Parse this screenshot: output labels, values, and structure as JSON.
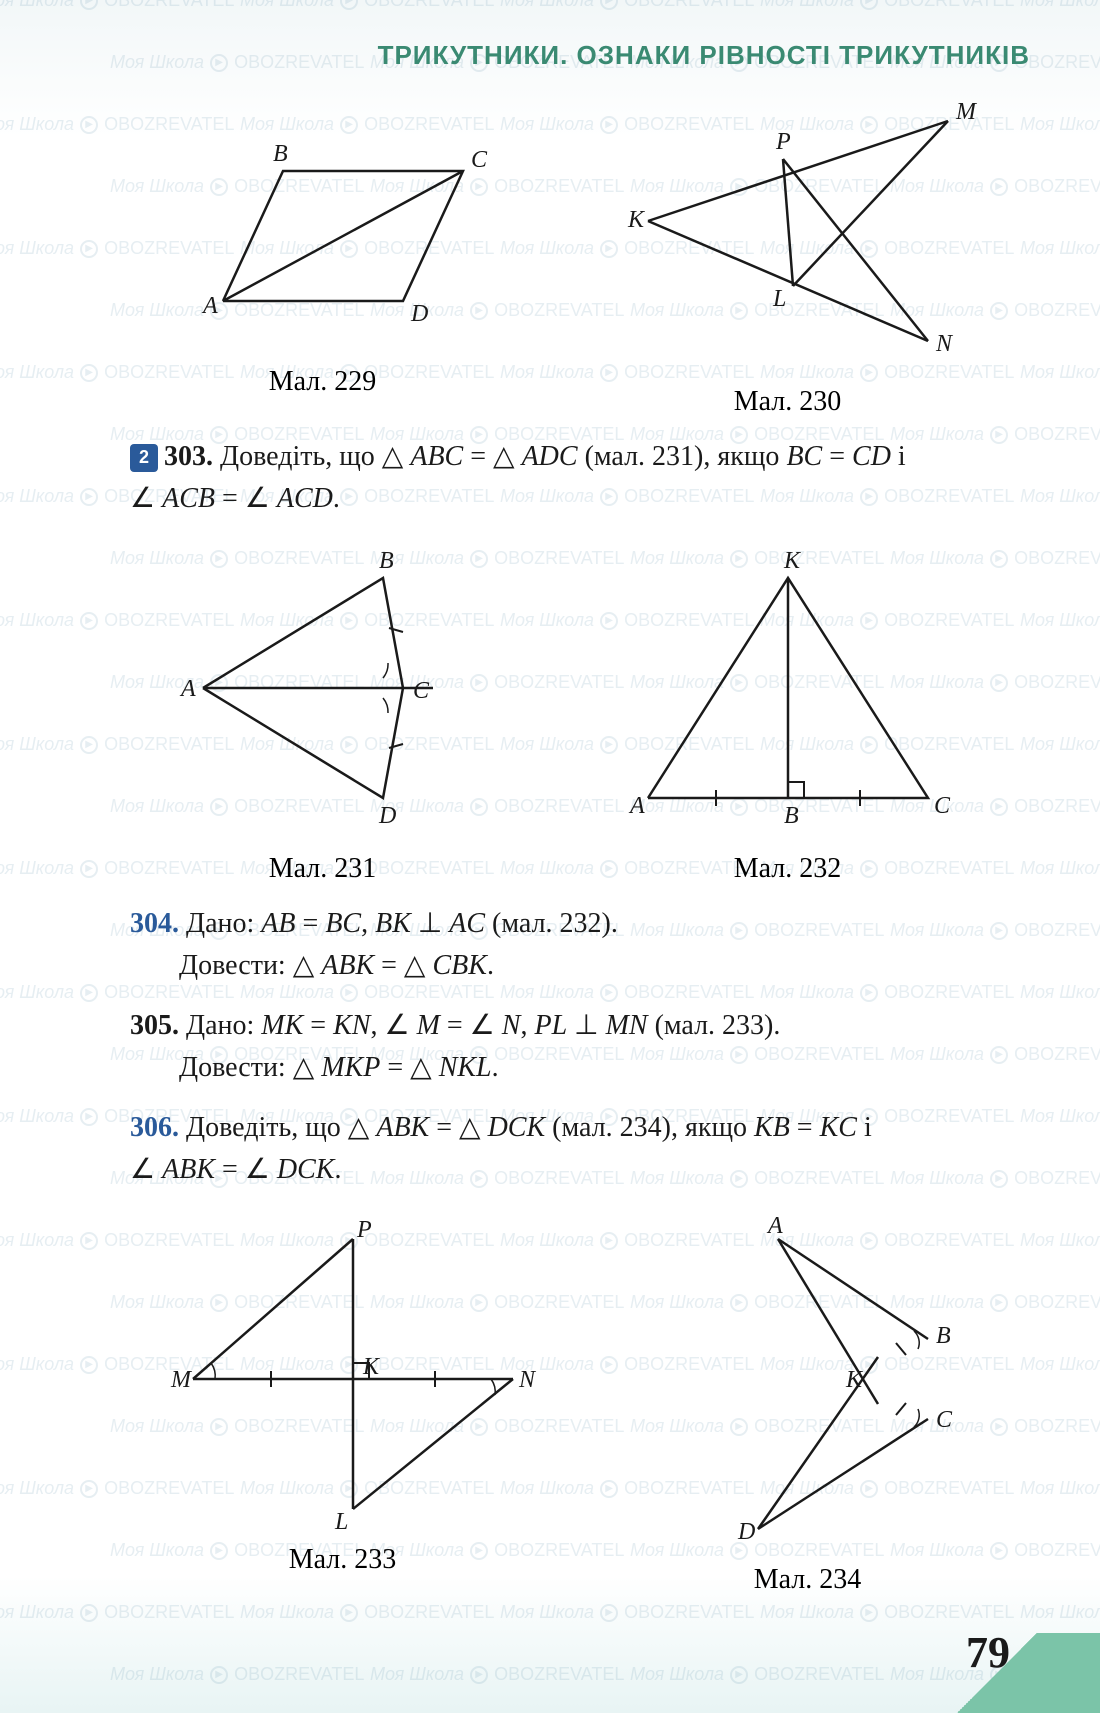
{
  "page": {
    "number": "79",
    "chapter_title": "ТРИКУТНИКИ. ОЗНАКИ РІВНОСТІ ТРИКУТНИКІВ"
  },
  "watermark": {
    "text1": "Моя Школа",
    "text2": "OBOZREVATEL"
  },
  "figures": {
    "f229": {
      "caption": "Мал. 229",
      "labels": {
        "A": "A",
        "B": "B",
        "C": "C",
        "D": "D"
      }
    },
    "f230": {
      "caption": "Мал. 230",
      "labels": {
        "K": "K",
        "L": "L",
        "M": "M",
        "N": "N",
        "P": "P"
      }
    },
    "f231": {
      "caption": "Мал. 231",
      "labels": {
        "A": "A",
        "B": "B",
        "C": "C",
        "D": "D"
      }
    },
    "f232": {
      "caption": "Мал. 232",
      "labels": {
        "A": "A",
        "B": "B",
        "C": "C",
        "K": "K"
      }
    },
    "f233": {
      "caption": "Мал. 233",
      "labels": {
        "M": "M",
        "N": "N",
        "K": "K",
        "P": "P",
        "L": "L"
      }
    },
    "f234": {
      "caption": "Мал. 234",
      "labels": {
        "A": "A",
        "B": "B",
        "C": "C",
        "D": "D",
        "K": "K"
      }
    }
  },
  "problems": {
    "p303": {
      "num": "303.",
      "text_a": "Доведіть, що △ ",
      "text_b": "ABC",
      "text_c": " = △ ",
      "text_d": "ADC",
      "text_e": " (мал. 231), якщо ",
      "text_f": "BC",
      "text_g": " = ",
      "text_h": "CD",
      "text_i": " i",
      "line2_a": "∠ ",
      "line2_b": "ACB",
      "line2_c": " = ∠ ",
      "line2_d": "ACD",
      "line2_e": "."
    },
    "p304": {
      "num": "304.",
      "line1_a": "Дано: ",
      "line1_b": "AB",
      "line1_c": " = ",
      "line1_d": "BC",
      "line1_e": ", ",
      "line1_f": "BK",
      "line1_g": " ⊥ ",
      "line1_h": "AC",
      "line1_i": " (мал. 232).",
      "line2_a": "Довести: △ ",
      "line2_b": "ABK",
      "line2_c": " = △ ",
      "line2_d": "CBK",
      "line2_e": "."
    },
    "p305": {
      "num": "305.",
      "line1_a": "Дано: ",
      "line1_b": "MK",
      "line1_c": " = ",
      "line1_d": "KN",
      "line1_e": ", ∠ ",
      "line1_f": "M",
      "line1_g": " = ∠ ",
      "line1_h": "N",
      "line1_i": ", ",
      "line1_j": "PL",
      "line1_k": " ⊥ ",
      "line1_l": "MN",
      "line1_m": " (мал. 233).",
      "line2_a": "Довести: △ ",
      "line2_b": "MKP",
      "line2_c": " = △ ",
      "line2_d": "NKL",
      "line2_e": "."
    },
    "p306": {
      "num": "306.",
      "line1_a": "Доведіть, що △ ",
      "line1_b": "ABK",
      "line1_c": " = △ ",
      "line1_d": "DCK",
      "line1_e": " (мал. 234), якщо ",
      "line1_f": "KB",
      "line1_g": " = ",
      "line1_h": "KC",
      "line1_i": " і",
      "line2_a": "∠ ",
      "line2_b": "ABK",
      "line2_c": " = ∠ ",
      "line2_d": "DCK",
      "line2_e": "."
    }
  },
  "colors": {
    "title": "#3a8a72",
    "blue": "#2a5a9a",
    "line": "#1a1a1a",
    "watermark": "#5a8aa8",
    "corner": "#7bc4a8"
  }
}
